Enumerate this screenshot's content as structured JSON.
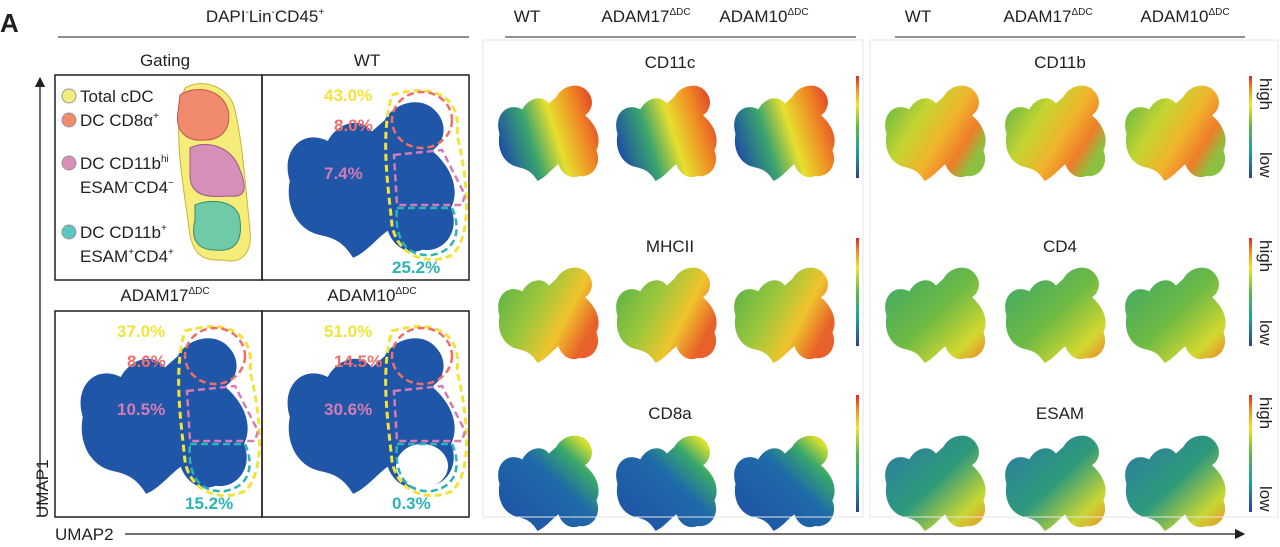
{
  "panel_letter": "A",
  "left_group": {
    "title": [
      {
        "text": "DAPI",
        "sup": "-"
      },
      {
        "text": "Lin",
        "sup": "-"
      },
      {
        "text": "CD45",
        "sup": "+"
      }
    ],
    "panels": [
      {
        "label": "Gating"
      },
      {
        "label": "WT",
        "pcts": {
          "total": "43.0%",
          "cd8": "8.0%",
          "cd11bhi": "7.4%",
          "cd11bplus": "25.2%"
        }
      },
      {
        "label": "ADAM17",
        "sup": "ΔDC",
        "pcts": {
          "total": "37.0%",
          "cd8": "8.6%",
          "cd11bhi": "10.5%",
          "cd11bplus": "15.2%"
        }
      },
      {
        "label": "ADAM10",
        "sup": "ΔDC",
        "pcts": {
          "total": "51.0%",
          "cd8": "14.5%",
          "cd11bhi": "30.6%",
          "cd11bplus": "0.3%"
        }
      }
    ],
    "legend": [
      {
        "line1": "Total cDC",
        "color": "#f6ec7a"
      },
      {
        "line1": "DC CD8α",
        "sup1": "+",
        "color": "#f28b6e"
      },
      {
        "line1": "DC CD11b",
        "sup1": "hi",
        "line2a": "ESAM",
        "sup2a": "−",
        "line2b": "CD4",
        "sup2b": "−",
        "color": "#d68fb8"
      },
      {
        "line1": "DC CD11b",
        "sup1": "+",
        "line2a": "ESAM",
        "sup2a": "+",
        "line2b": "CD4",
        "sup2b": "+",
        "color": "#5cc6c2"
      }
    ],
    "gate_colors": {
      "total": "#f2e33a",
      "cd8": "#ef6f6a",
      "cd11bhi": "#d57bb5",
      "cd11bplus": "#2bb3b7"
    },
    "dot_color": "#1f56a8"
  },
  "axes": {
    "y": "UMAP1",
    "x": "UMAP2"
  },
  "heatmap_groups": [
    {
      "columns": [
        {
          "label": "WT"
        },
        {
          "label": "ADAM17",
          "sup": "ΔDC"
        },
        {
          "label": "ADAM10",
          "sup": "ΔDC"
        }
      ],
      "markers": [
        "CD11c",
        "MHCII",
        "CD8a"
      ]
    },
    {
      "columns": [
        {
          "label": "WT"
        },
        {
          "label": "ADAM17",
          "sup": "ΔDC"
        },
        {
          "label": "ADAM10",
          "sup": "ΔDC"
        }
      ],
      "markers": [
        "CD11b",
        "CD4",
        "ESAM"
      ]
    }
  ],
  "colorbar": {
    "high": "high",
    "low": "low",
    "colors": [
      "#2b3f9e",
      "#1aa0a0",
      "#5cb946",
      "#f2e62a",
      "#f08a24",
      "#e0262a"
    ]
  }
}
